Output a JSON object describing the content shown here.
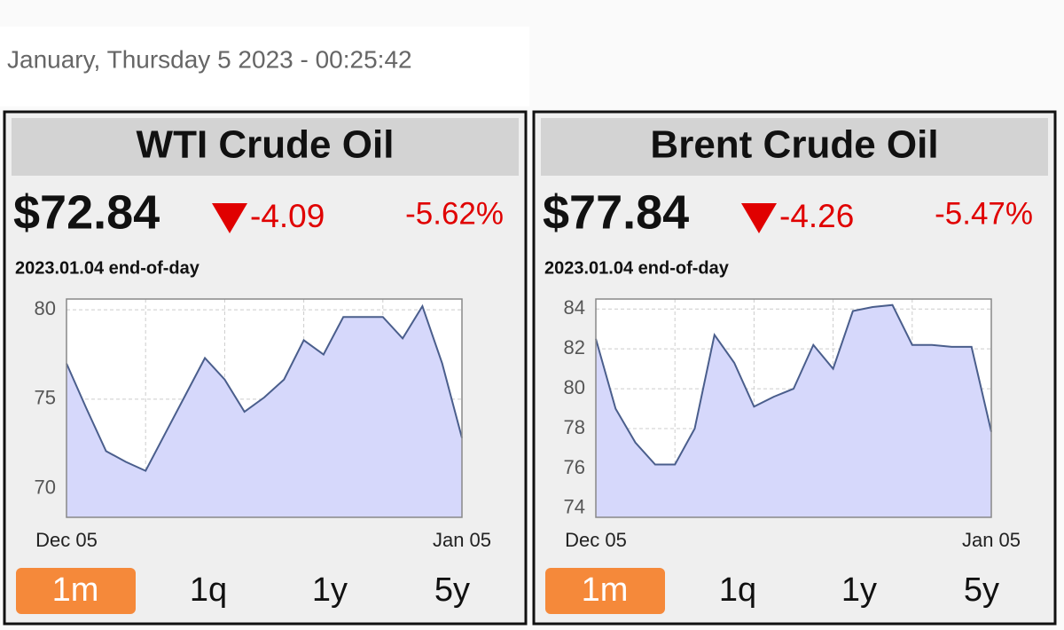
{
  "header": {
    "datetime": "January, Thursday 5 2023 - 00:25:42"
  },
  "widgets": [
    {
      "title": "WTI Crude Oil",
      "price": "$72.84",
      "change": "-4.09",
      "change_percent": "-5.62%",
      "as_of": "2023.01.04 end-of-day",
      "chart": {
        "type": "area",
        "x_labels": [
          "Dec 05",
          "Jan 05"
        ],
        "values": [
          77.0,
          74.5,
          72.1,
          71.5,
          71.0,
          73.1,
          75.2,
          77.3,
          76.1,
          74.3,
          75.1,
          76.1,
          78.3,
          77.5,
          79.6,
          79.6,
          79.6,
          78.4,
          80.2,
          77.0,
          72.84
        ],
        "ylim": [
          68.4,
          80.6
        ],
        "yticks": [
          70,
          75,
          80
        ],
        "color": "#4a5e8c",
        "fill": "#d6d8fb",
        "grid": true
      },
      "tabs": [
        "1m",
        "1q",
        "1y",
        "5y"
      ],
      "active_tab": 0
    },
    {
      "title": "Brent Crude Oil",
      "price": "$77.84",
      "change": "-4.26",
      "change_percent": "-5.47%",
      "as_of": "2023.01.04 end-of-day",
      "chart": {
        "type": "area",
        "x_labels": [
          "Dec 05",
          "Jan 05"
        ],
        "values": [
          82.5,
          79.0,
          77.3,
          76.2,
          76.2,
          78.0,
          82.7,
          81.3,
          79.1,
          79.6,
          80.0,
          82.2,
          81.0,
          83.9,
          84.1,
          84.2,
          82.2,
          82.2,
          82.1,
          82.1,
          77.84
        ],
        "ylim": [
          73.55,
          84.5
        ],
        "yticks": [
          74,
          76,
          78,
          80,
          82,
          84
        ],
        "color": "#4a5e8c",
        "fill": "#d6d8fb",
        "grid": true
      },
      "tabs": [
        "1m",
        "1q",
        "1y",
        "5y"
      ],
      "active_tab": 0
    }
  ]
}
